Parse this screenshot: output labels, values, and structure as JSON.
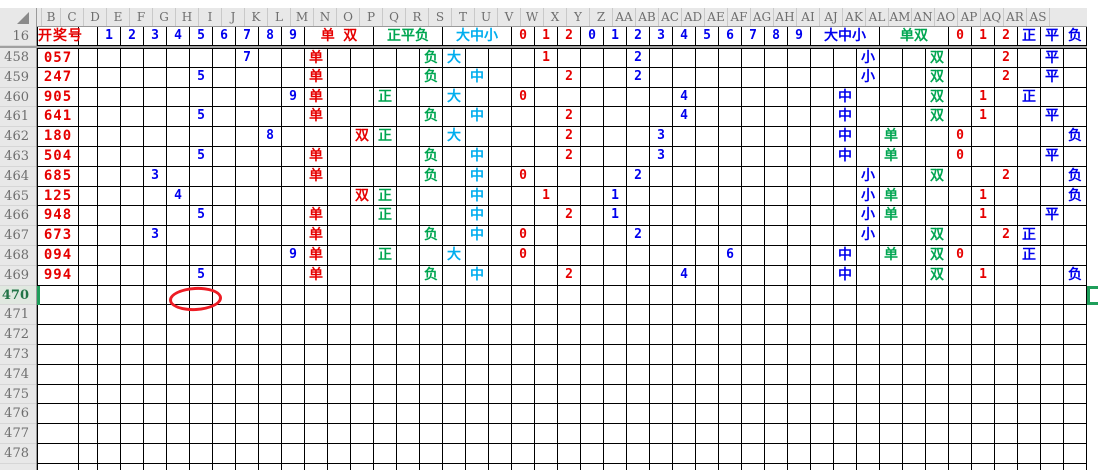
{
  "sheet": {
    "corner_label": "",
    "columns": [
      "A",
      "B",
      "C",
      "D",
      "E",
      "F",
      "G",
      "H",
      "I",
      "J",
      "K",
      "L",
      "M",
      "N",
      "O",
      "P",
      "Q",
      "R",
      "S",
      "T",
      "U",
      "V",
      "W",
      "X",
      "Y",
      "Z",
      "AA",
      "AB",
      "AC",
      "AD",
      "AE",
      "AF",
      "AG",
      "AH",
      "AI",
      "AJ",
      "AK",
      "AL",
      "AM",
      "AN",
      "AO",
      "AP",
      "AQ",
      "AR",
      "AS"
    ],
    "header_row": {
      "id": "16",
      "cells": [
        [
          "A",
          "开奖号",
          "red",
          1
        ],
        [
          "C",
          "1",
          "blue",
          1
        ],
        [
          "D",
          "2",
          "blue",
          1
        ],
        [
          "E",
          "3",
          "blue",
          1
        ],
        [
          "F",
          "4",
          "blue",
          1
        ],
        [
          "G",
          "5",
          "blue",
          1
        ],
        [
          "H",
          "6",
          "blue",
          1
        ],
        [
          "I",
          "7",
          "blue",
          1
        ],
        [
          "J",
          "8",
          "blue",
          1
        ],
        [
          "K",
          "9",
          "blue",
          1
        ],
        [
          "L",
          "单 双",
          "red",
          3
        ],
        [
          "O",
          "正平负",
          "green",
          3
        ],
        [
          "R",
          "大中小",
          "cyan",
          3
        ],
        [
          "U",
          "0",
          "red",
          1
        ],
        [
          "V",
          "1",
          "red",
          1
        ],
        [
          "W",
          "2",
          "red",
          1
        ],
        [
          "X",
          "0",
          "blue",
          1
        ],
        [
          "Y",
          "1",
          "blue",
          1
        ],
        [
          "Z",
          "2",
          "blue",
          1
        ],
        [
          "AA",
          "3",
          "blue",
          1
        ],
        [
          "AB",
          "4",
          "blue",
          1
        ],
        [
          "AC",
          "5",
          "blue",
          1
        ],
        [
          "AD",
          "6",
          "blue",
          1
        ],
        [
          "AE",
          "7",
          "blue",
          1
        ],
        [
          "AF",
          "8",
          "blue",
          1
        ],
        [
          "AG",
          "9",
          "blue",
          1
        ],
        [
          "AH",
          "大中小",
          "blue",
          3
        ],
        [
          "AK",
          "单双",
          "green",
          3
        ],
        [
          "AN",
          "0",
          "red",
          1
        ],
        [
          "AO",
          "1",
          "red",
          1
        ],
        [
          "AP",
          "2",
          "red",
          1
        ],
        [
          "AQ",
          "正",
          "blue",
          1
        ],
        [
          "AR",
          "平",
          "blue",
          1
        ],
        [
          "AS",
          "负",
          "blue",
          1
        ]
      ]
    },
    "rows": [
      {
        "id": "458",
        "cells": [
          [
            "A",
            "057",
            "red"
          ],
          [
            "I",
            "7",
            "blue"
          ],
          [
            "L",
            "单",
            "red"
          ],
          [
            "Q",
            "负",
            "green"
          ],
          [
            "R",
            "大",
            "cyan"
          ],
          [
            "V",
            "1",
            "red"
          ],
          [
            "Z",
            "2",
            "blue"
          ],
          [
            "AJ",
            "小",
            "blue"
          ],
          [
            "AM",
            "双",
            "green"
          ],
          [
            "AP",
            "2",
            "red"
          ],
          [
            "AR",
            "平",
            "blue"
          ]
        ]
      },
      {
        "id": "459",
        "cells": [
          [
            "A",
            "247",
            "red"
          ],
          [
            "G",
            "5",
            "blue"
          ],
          [
            "L",
            "单",
            "red"
          ],
          [
            "Q",
            "负",
            "green"
          ],
          [
            "S",
            "中",
            "cyan"
          ],
          [
            "W",
            "2",
            "red"
          ],
          [
            "Z",
            "2",
            "blue"
          ],
          [
            "AJ",
            "小",
            "blue"
          ],
          [
            "AM",
            "双",
            "green"
          ],
          [
            "AP",
            "2",
            "red"
          ],
          [
            "AR",
            "平",
            "blue"
          ]
        ]
      },
      {
        "id": "460",
        "cells": [
          [
            "A",
            "905",
            "red"
          ],
          [
            "K",
            "9",
            "blue"
          ],
          [
            "L",
            "单",
            "red"
          ],
          [
            "O",
            "正",
            "green"
          ],
          [
            "R",
            "大",
            "cyan"
          ],
          [
            "U",
            "0",
            "red"
          ],
          [
            "AB",
            "4",
            "blue"
          ],
          [
            "AI",
            "中",
            "blue"
          ],
          [
            "AM",
            "双",
            "green"
          ],
          [
            "AO",
            "1",
            "red"
          ],
          [
            "AQ",
            "正",
            "blue"
          ]
        ]
      },
      {
        "id": "461",
        "cells": [
          [
            "A",
            "641",
            "red"
          ],
          [
            "G",
            "5",
            "blue"
          ],
          [
            "L",
            "单",
            "red"
          ],
          [
            "Q",
            "负",
            "green"
          ],
          [
            "S",
            "中",
            "cyan"
          ],
          [
            "W",
            "2",
            "red"
          ],
          [
            "AB",
            "4",
            "blue"
          ],
          [
            "AI",
            "中",
            "blue"
          ],
          [
            "AM",
            "双",
            "green"
          ],
          [
            "AO",
            "1",
            "red"
          ],
          [
            "AR",
            "平",
            "blue"
          ]
        ]
      },
      {
        "id": "462",
        "cells": [
          [
            "A",
            "180",
            "red"
          ],
          [
            "J",
            "8",
            "blue"
          ],
          [
            "N",
            "双",
            "red"
          ],
          [
            "O",
            "正",
            "green"
          ],
          [
            "R",
            "大",
            "cyan"
          ],
          [
            "W",
            "2",
            "red"
          ],
          [
            "AA",
            "3",
            "blue"
          ],
          [
            "AI",
            "中",
            "blue"
          ],
          [
            "AK",
            "单",
            "green"
          ],
          [
            "AN",
            "0",
            "red"
          ],
          [
            "AS",
            "负",
            "blue"
          ]
        ]
      },
      {
        "id": "463",
        "cells": [
          [
            "A",
            "504",
            "red"
          ],
          [
            "G",
            "5",
            "blue"
          ],
          [
            "L",
            "单",
            "red"
          ],
          [
            "Q",
            "负",
            "green"
          ],
          [
            "S",
            "中",
            "cyan"
          ],
          [
            "W",
            "2",
            "red"
          ],
          [
            "AA",
            "3",
            "blue"
          ],
          [
            "AI",
            "中",
            "blue"
          ],
          [
            "AK",
            "单",
            "green"
          ],
          [
            "AN",
            "0",
            "red"
          ],
          [
            "AR",
            "平",
            "blue"
          ]
        ]
      },
      {
        "id": "464",
        "cells": [
          [
            "A",
            "685",
            "red"
          ],
          [
            "E",
            "3",
            "blue"
          ],
          [
            "L",
            "单",
            "red"
          ],
          [
            "Q",
            "负",
            "green"
          ],
          [
            "S",
            "中",
            "cyan"
          ],
          [
            "U",
            "0",
            "red"
          ],
          [
            "Z",
            "2",
            "blue"
          ],
          [
            "AJ",
            "小",
            "blue"
          ],
          [
            "AM",
            "双",
            "green"
          ],
          [
            "AP",
            "2",
            "red"
          ],
          [
            "AS",
            "负",
            "blue"
          ]
        ]
      },
      {
        "id": "465",
        "cells": [
          [
            "A",
            "125",
            "red"
          ],
          [
            "F",
            "4",
            "blue"
          ],
          [
            "N",
            "双",
            "red"
          ],
          [
            "O",
            "正",
            "green"
          ],
          [
            "S",
            "中",
            "cyan"
          ],
          [
            "V",
            "1",
            "red"
          ],
          [
            "Y",
            "1",
            "blue"
          ],
          [
            "AJ",
            "小",
            "blue"
          ],
          [
            "AK",
            "单",
            "green"
          ],
          [
            "AO",
            "1",
            "red"
          ],
          [
            "AS",
            "负",
            "blue"
          ]
        ]
      },
      {
        "id": "466",
        "cells": [
          [
            "A",
            "948",
            "red"
          ],
          [
            "G",
            "5",
            "blue"
          ],
          [
            "L",
            "单",
            "red"
          ],
          [
            "O",
            "正",
            "green"
          ],
          [
            "S",
            "中",
            "cyan"
          ],
          [
            "W",
            "2",
            "red"
          ],
          [
            "Y",
            "1",
            "blue"
          ],
          [
            "AJ",
            "小",
            "blue"
          ],
          [
            "AK",
            "单",
            "green"
          ],
          [
            "AO",
            "1",
            "red"
          ],
          [
            "AR",
            "平",
            "blue"
          ]
        ]
      },
      {
        "id": "467",
        "cells": [
          [
            "A",
            "673",
            "red"
          ],
          [
            "E",
            "3",
            "blue"
          ],
          [
            "L",
            "单",
            "red"
          ],
          [
            "Q",
            "负",
            "green"
          ],
          [
            "S",
            "中",
            "cyan"
          ],
          [
            "U",
            "0",
            "red"
          ],
          [
            "Z",
            "2",
            "blue"
          ],
          [
            "AJ",
            "小",
            "blue"
          ],
          [
            "AM",
            "双",
            "green"
          ],
          [
            "AP",
            "2",
            "red"
          ],
          [
            "AQ",
            "正",
            "blue"
          ]
        ]
      },
      {
        "id": "468",
        "cells": [
          [
            "A",
            "094",
            "red"
          ],
          [
            "K",
            "9",
            "blue"
          ],
          [
            "L",
            "单",
            "red"
          ],
          [
            "O",
            "正",
            "green"
          ],
          [
            "R",
            "大",
            "cyan"
          ],
          [
            "U",
            "0",
            "red"
          ],
          [
            "AD",
            "6",
            "blue"
          ],
          [
            "AI",
            "中",
            "blue"
          ],
          [
            "AK",
            "单",
            "green"
          ],
          [
            "AM",
            "双",
            "green"
          ],
          [
            "AN",
            "0",
            "red"
          ],
          [
            "AQ",
            "正",
            "blue"
          ]
        ]
      },
      {
        "id": "469",
        "cells": [
          [
            "A",
            "994",
            "red"
          ],
          [
            "G",
            "5",
            "blue"
          ],
          [
            "L",
            "单",
            "red"
          ],
          [
            "Q",
            "负",
            "green"
          ],
          [
            "S",
            "中",
            "cyan"
          ],
          [
            "W",
            "2",
            "red"
          ],
          [
            "AB",
            "4",
            "blue"
          ],
          [
            "AI",
            "中",
            "blue"
          ],
          [
            "AM",
            "双",
            "green"
          ],
          [
            "AO",
            "1",
            "red"
          ],
          [
            "AS",
            "负",
            "blue"
          ]
        ]
      },
      {
        "id": "470",
        "cells": []
      },
      {
        "id": "471",
        "cells": []
      },
      {
        "id": "472",
        "cells": []
      },
      {
        "id": "473",
        "cells": []
      },
      {
        "id": "474",
        "cells": []
      },
      {
        "id": "475",
        "cells": []
      },
      {
        "id": "476",
        "cells": []
      },
      {
        "id": "477",
        "cells": []
      },
      {
        "id": "478",
        "cells": []
      },
      {
        "id": "",
        "cells": []
      }
    ],
    "selection": {
      "selected_row": "470",
      "left_bar": true,
      "right_bracket": true
    },
    "annotation": {
      "shape": "ellipse",
      "anchor_row": "470",
      "anchor_cols": [
        "F",
        "G"
      ]
    },
    "palette": {
      "red": "#E60000",
      "blue": "#0000EE",
      "green": "#00A651",
      "cyan": "#00AEEF",
      "header_text": "#6E6E6E",
      "header_bg": "#E8E8E8",
      "grid_line": "#000000",
      "pane_divider": "#A0A0A0",
      "selected_row_label": "#217346",
      "selection_border": "#1E9E5A",
      "annotation_red": "#ED1C24"
    }
  }
}
